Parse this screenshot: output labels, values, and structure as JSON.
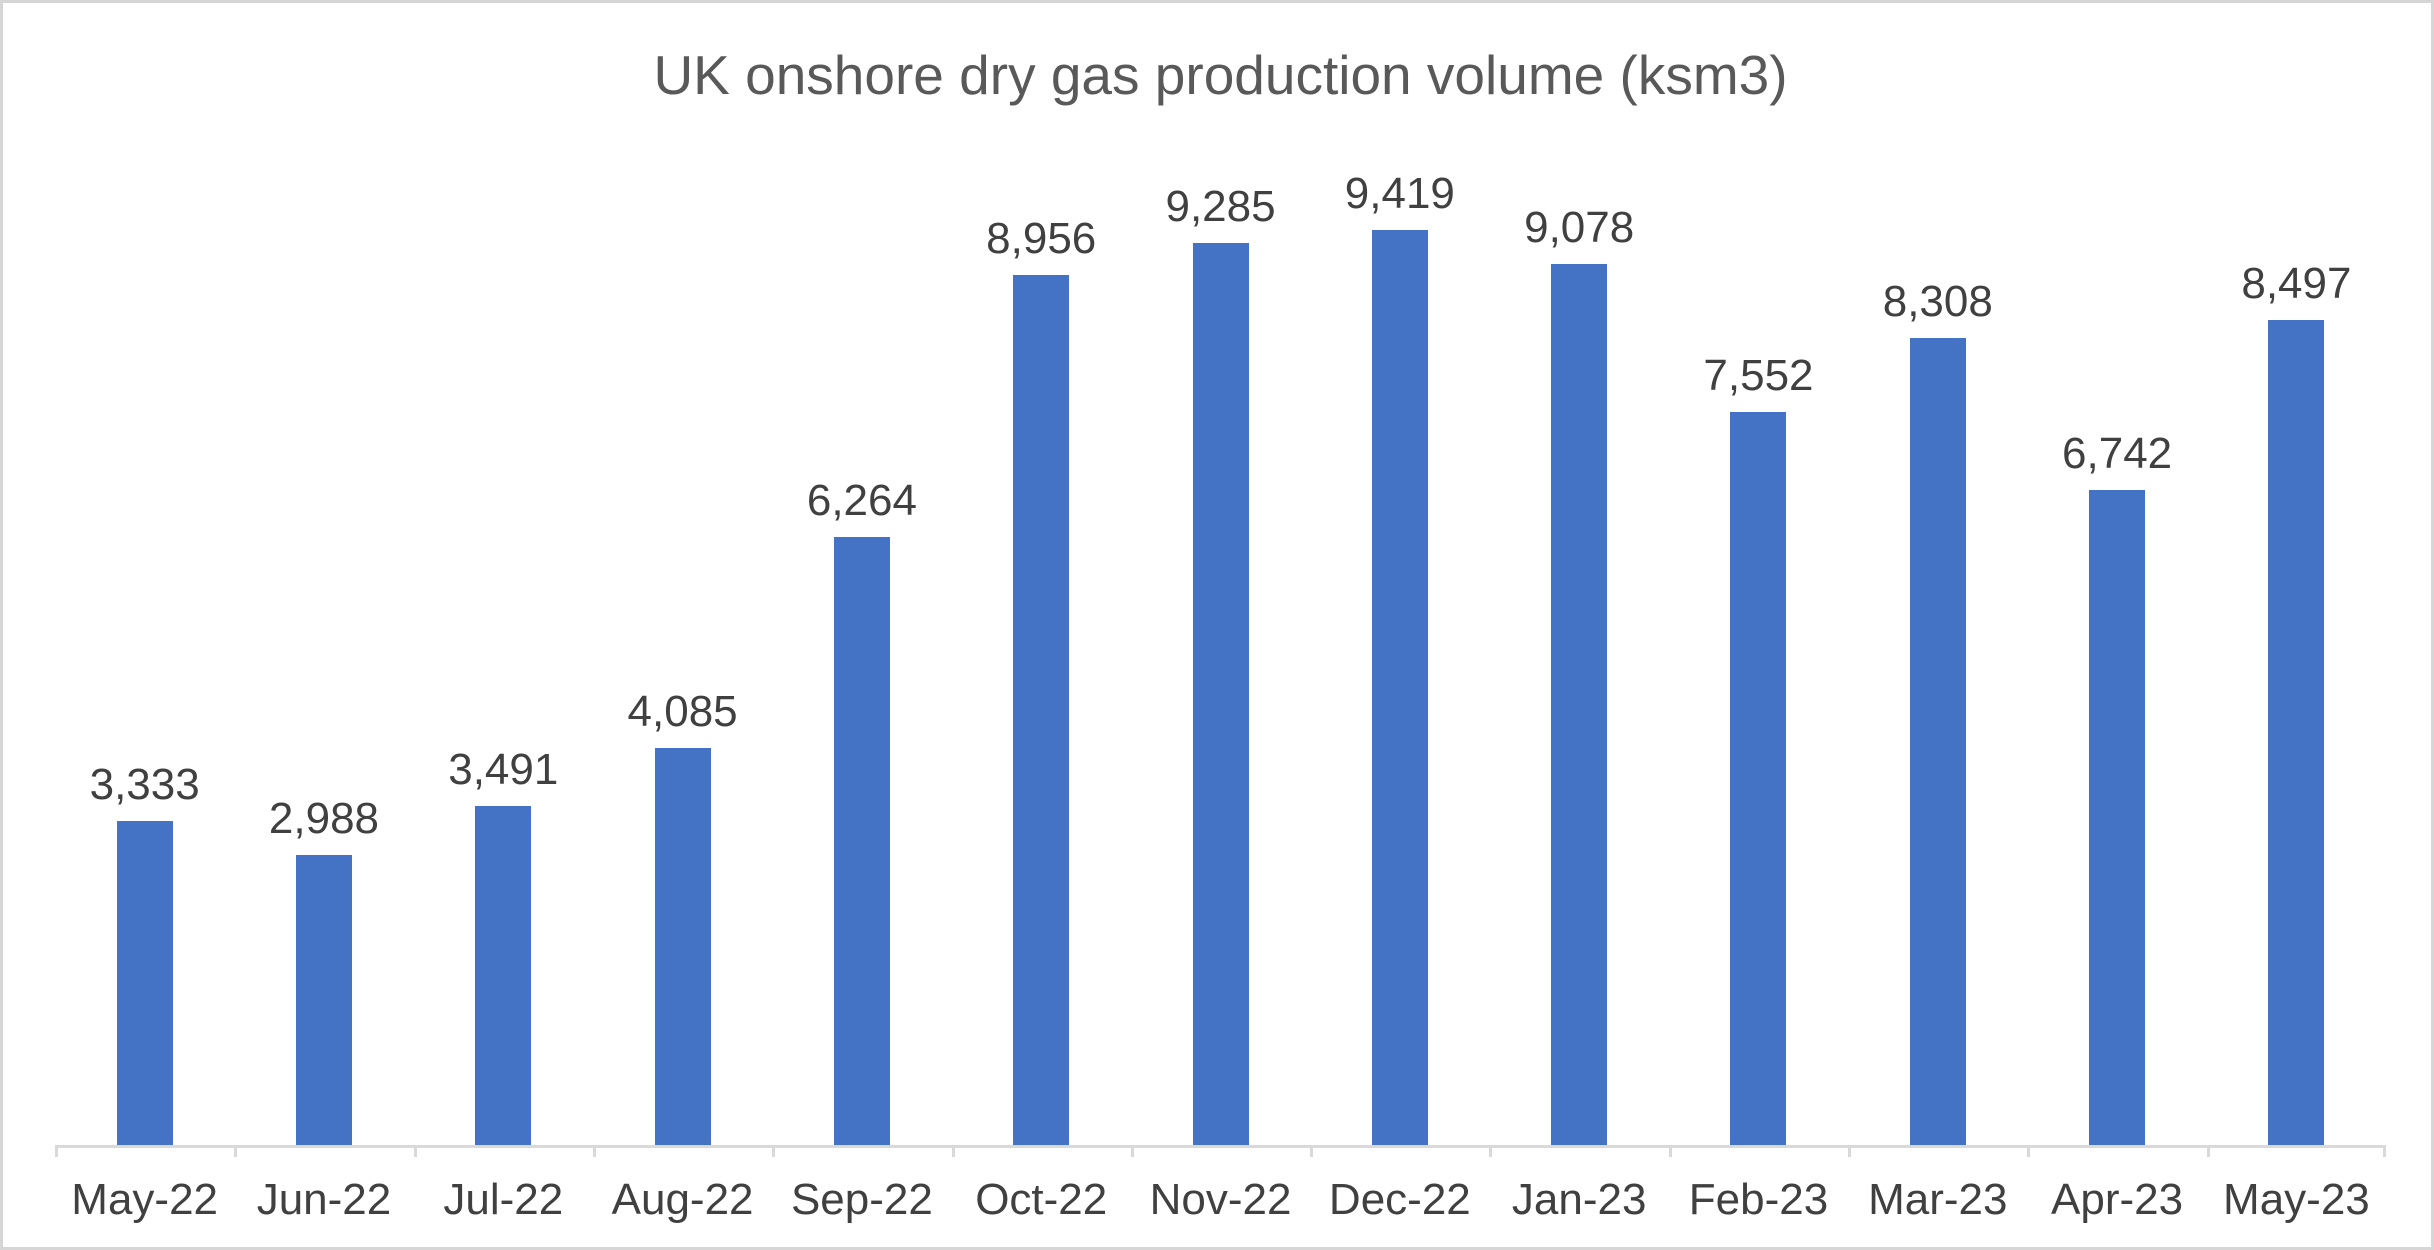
{
  "chart_data": {
    "type": "bar",
    "title": "UK onshore dry gas production volume (ksm3)",
    "categories": [
      "May-22",
      "Jun-22",
      "Jul-22",
      "Aug-22",
      "Sep-22",
      "Oct-22",
      "Nov-22",
      "Dec-22",
      "Jan-23",
      "Feb-23",
      "Mar-23",
      "Apr-23",
      "May-23"
    ],
    "values": [
      3333,
      2988,
      3491,
      4085,
      6264,
      8956,
      9285,
      9419,
      9078,
      7552,
      8308,
      6742,
      8497
    ],
    "data_labels": [
      "3,333",
      "2,988",
      "3,491",
      "4,085",
      "6,264",
      "8,956",
      "9,285",
      "9,419",
      "9,078",
      "7,552",
      "8,308",
      "6,742",
      "8,497"
    ],
    "data_label_position": "outside-end",
    "xlabel": "",
    "ylabel": "",
    "ylim": [
      0,
      10000
    ],
    "grid": "off",
    "legend": "none",
    "colors": {
      "bar_fill": "#4472C4",
      "axis_line": "#D9D9D9",
      "tick": "#D9D9D9",
      "axis_label_text": "#404040",
      "data_label_text": "#404040",
      "title_text": "#595959",
      "frame_border": "#D6D6D6",
      "background": "#FFFFFF"
    }
  }
}
